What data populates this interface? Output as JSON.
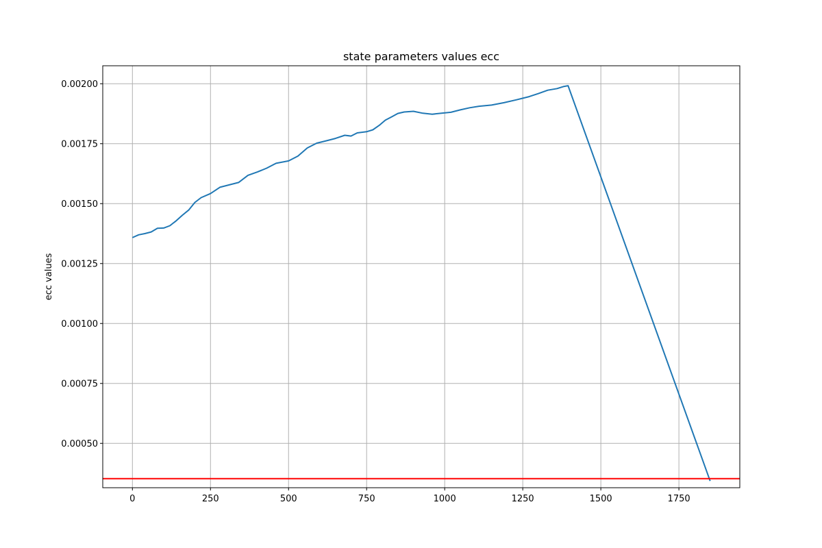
{
  "chart_data": {
    "type": "line",
    "title": "state parameters values ecc",
    "xlabel": "",
    "ylabel": "ecc values",
    "xlim": [
      -95,
      1945
    ],
    "ylim": [
      0.000315,
      0.002075
    ],
    "grid": true,
    "xticks": [
      0,
      250,
      500,
      750,
      1000,
      1250,
      1500,
      1750
    ],
    "xtick_labels": [
      "0",
      "250",
      "500",
      "750",
      "1000",
      "1250",
      "1500",
      "1750"
    ],
    "yticks": [
      0.0005,
      0.00075,
      0.001,
      0.00125,
      0.0015,
      0.00175,
      0.002
    ],
    "ytick_labels": [
      "0.00050",
      "0.00075",
      "0.00100",
      "0.00125",
      "0.00150",
      "0.00175",
      "0.00200"
    ],
    "series": [
      {
        "color": "#1f77b4",
        "x": [
          0,
          20,
          40,
          60,
          80,
          100,
          120,
          140,
          160,
          180,
          200,
          220,
          250,
          280,
          310,
          340,
          370,
          400,
          430,
          460,
          500,
          530,
          560,
          590,
          620,
          650,
          680,
          700,
          720,
          750,
          770,
          790,
          810,
          830,
          850,
          870,
          900,
          930,
          960,
          990,
          1020,
          1050,
          1080,
          1110,
          1150,
          1190,
          1230,
          1270,
          1300,
          1330,
          1360,
          1380,
          1395,
          1850
        ],
        "y": [
          0.001358,
          0.00137,
          0.001375,
          0.001382,
          0.001397,
          0.001398,
          0.001408,
          0.001428,
          0.001452,
          0.001473,
          0.001505,
          0.001525,
          0.001542,
          0.001568,
          0.001578,
          0.001588,
          0.001618,
          0.001632,
          0.001648,
          0.001668,
          0.001678,
          0.001698,
          0.001732,
          0.001752,
          0.001762,
          0.001772,
          0.001785,
          0.001782,
          0.001795,
          0.0018,
          0.001808,
          0.001826,
          0.001848,
          0.001862,
          0.001876,
          0.001882,
          0.001885,
          0.001877,
          0.001873,
          0.001877,
          0.001881,
          0.001891,
          0.0019,
          0.001906,
          0.001911,
          0.001921,
          0.001933,
          0.001946,
          0.001959,
          0.001973,
          0.00198,
          0.001988,
          0.001992,
          0.000343
        ]
      }
    ],
    "threshold_line": {
      "y": 0.000353,
      "color": "#ff0000"
    }
  }
}
